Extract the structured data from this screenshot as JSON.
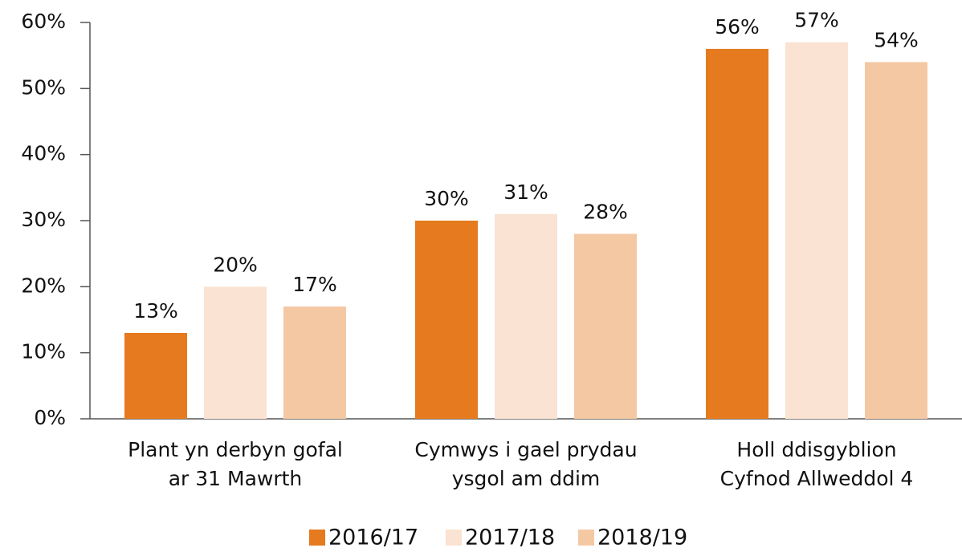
{
  "chart_data": {
    "type": "bar",
    "categories": [
      "Plant yn derbyn gofal\nar 31 Mawrth",
      "Cymwys i gael prydau\nysgol am ddim",
      "Holl ddisgyblion\nCyfnod Allweddol 4"
    ],
    "series": [
      {
        "name": "2016/17",
        "color": "#e57a1f",
        "values": [
          13,
          30,
          56
        ],
        "value_labels": [
          "13%",
          "30%",
          "56%"
        ]
      },
      {
        "name": "2017/18",
        "color": "#fae3d2",
        "values": [
          20,
          31,
          57
        ],
        "value_labels": [
          "20%",
          "31%",
          "57%"
        ]
      },
      {
        "name": "2018/19",
        "color": "#f5c8a4",
        "values": [
          17,
          28,
          54
        ],
        "value_labels": [
          "17%",
          "28%",
          "54%"
        ]
      }
    ],
    "ylim": [
      0,
      60
    ],
    "yticks": [
      {
        "value": 0,
        "label": "0%"
      },
      {
        "value": 10,
        "label": "10%"
      },
      {
        "value": 20,
        "label": "20%"
      },
      {
        "value": 30,
        "label": "30%"
      },
      {
        "value": 40,
        "label": "40%"
      },
      {
        "value": 50,
        "label": "50%"
      },
      {
        "value": 60,
        "label": "60%"
      }
    ],
    "legend": "bottom"
  }
}
